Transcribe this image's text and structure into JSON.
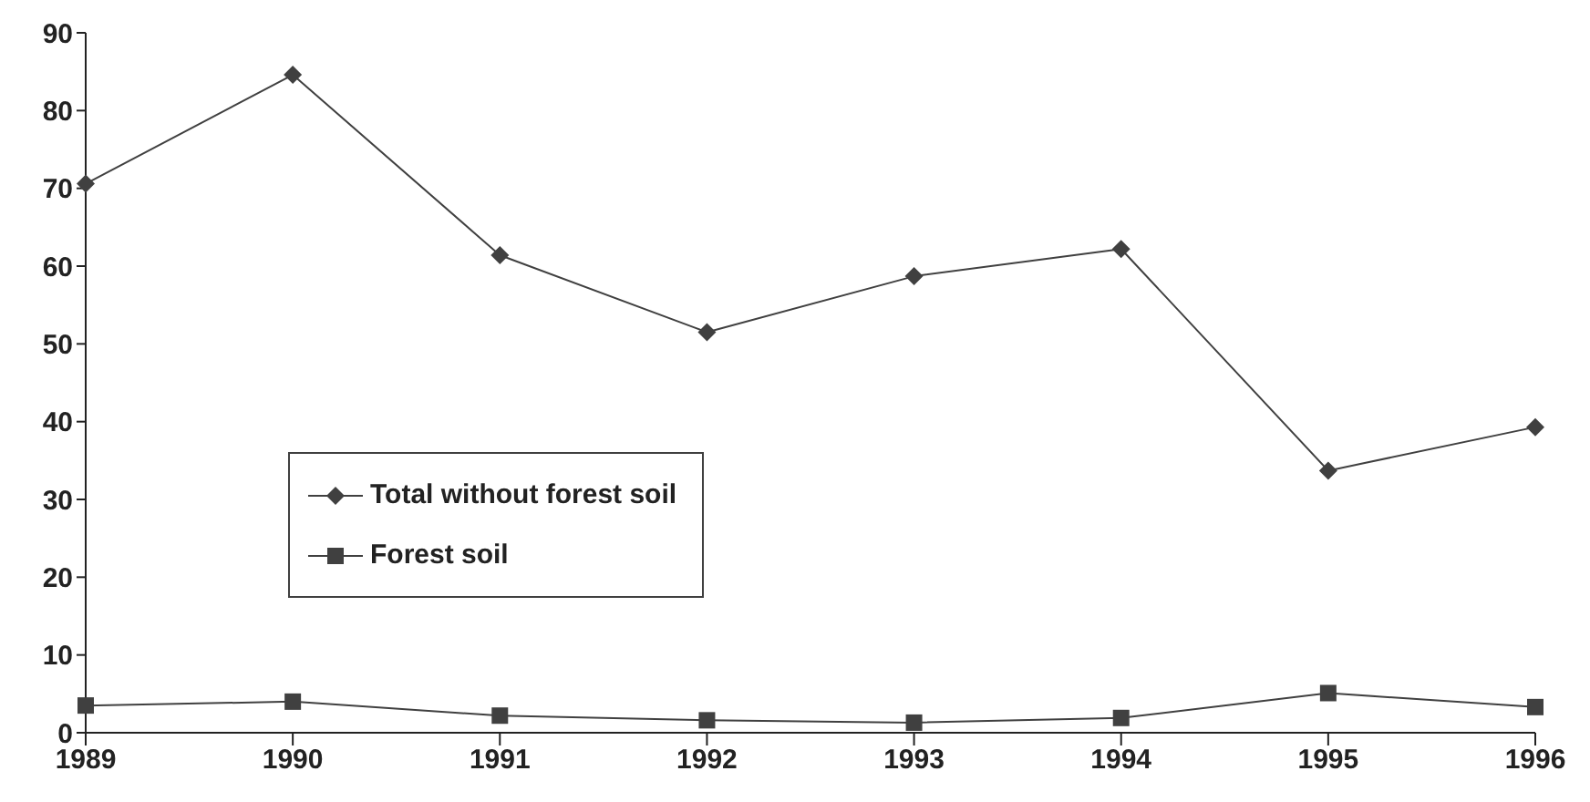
{
  "chart_data": {
    "type": "line",
    "categories": [
      "1989",
      "1990",
      "1991",
      "1992",
      "1993",
      "1994",
      "1995",
      "1996"
    ],
    "series": [
      {
        "name": "Total without forest soil",
        "color": "#404040",
        "marker": "diamond",
        "values": [
          70.6,
          84.6,
          61.4,
          51.5,
          58.7,
          62.2,
          33.7,
          39.3
        ]
      },
      {
        "name": "Forest soil",
        "color": "#404040",
        "marker": "square",
        "values": [
          3.5,
          4.0,
          2.2,
          1.6,
          1.3,
          1.9,
          5.1,
          3.3
        ]
      }
    ],
    "ylim": [
      0,
      90
    ],
    "yticks": [
      0,
      10,
      20,
      30,
      40,
      50,
      60,
      70,
      80,
      90
    ],
    "grid": false,
    "legend": "left",
    "line_style": "solid"
  }
}
